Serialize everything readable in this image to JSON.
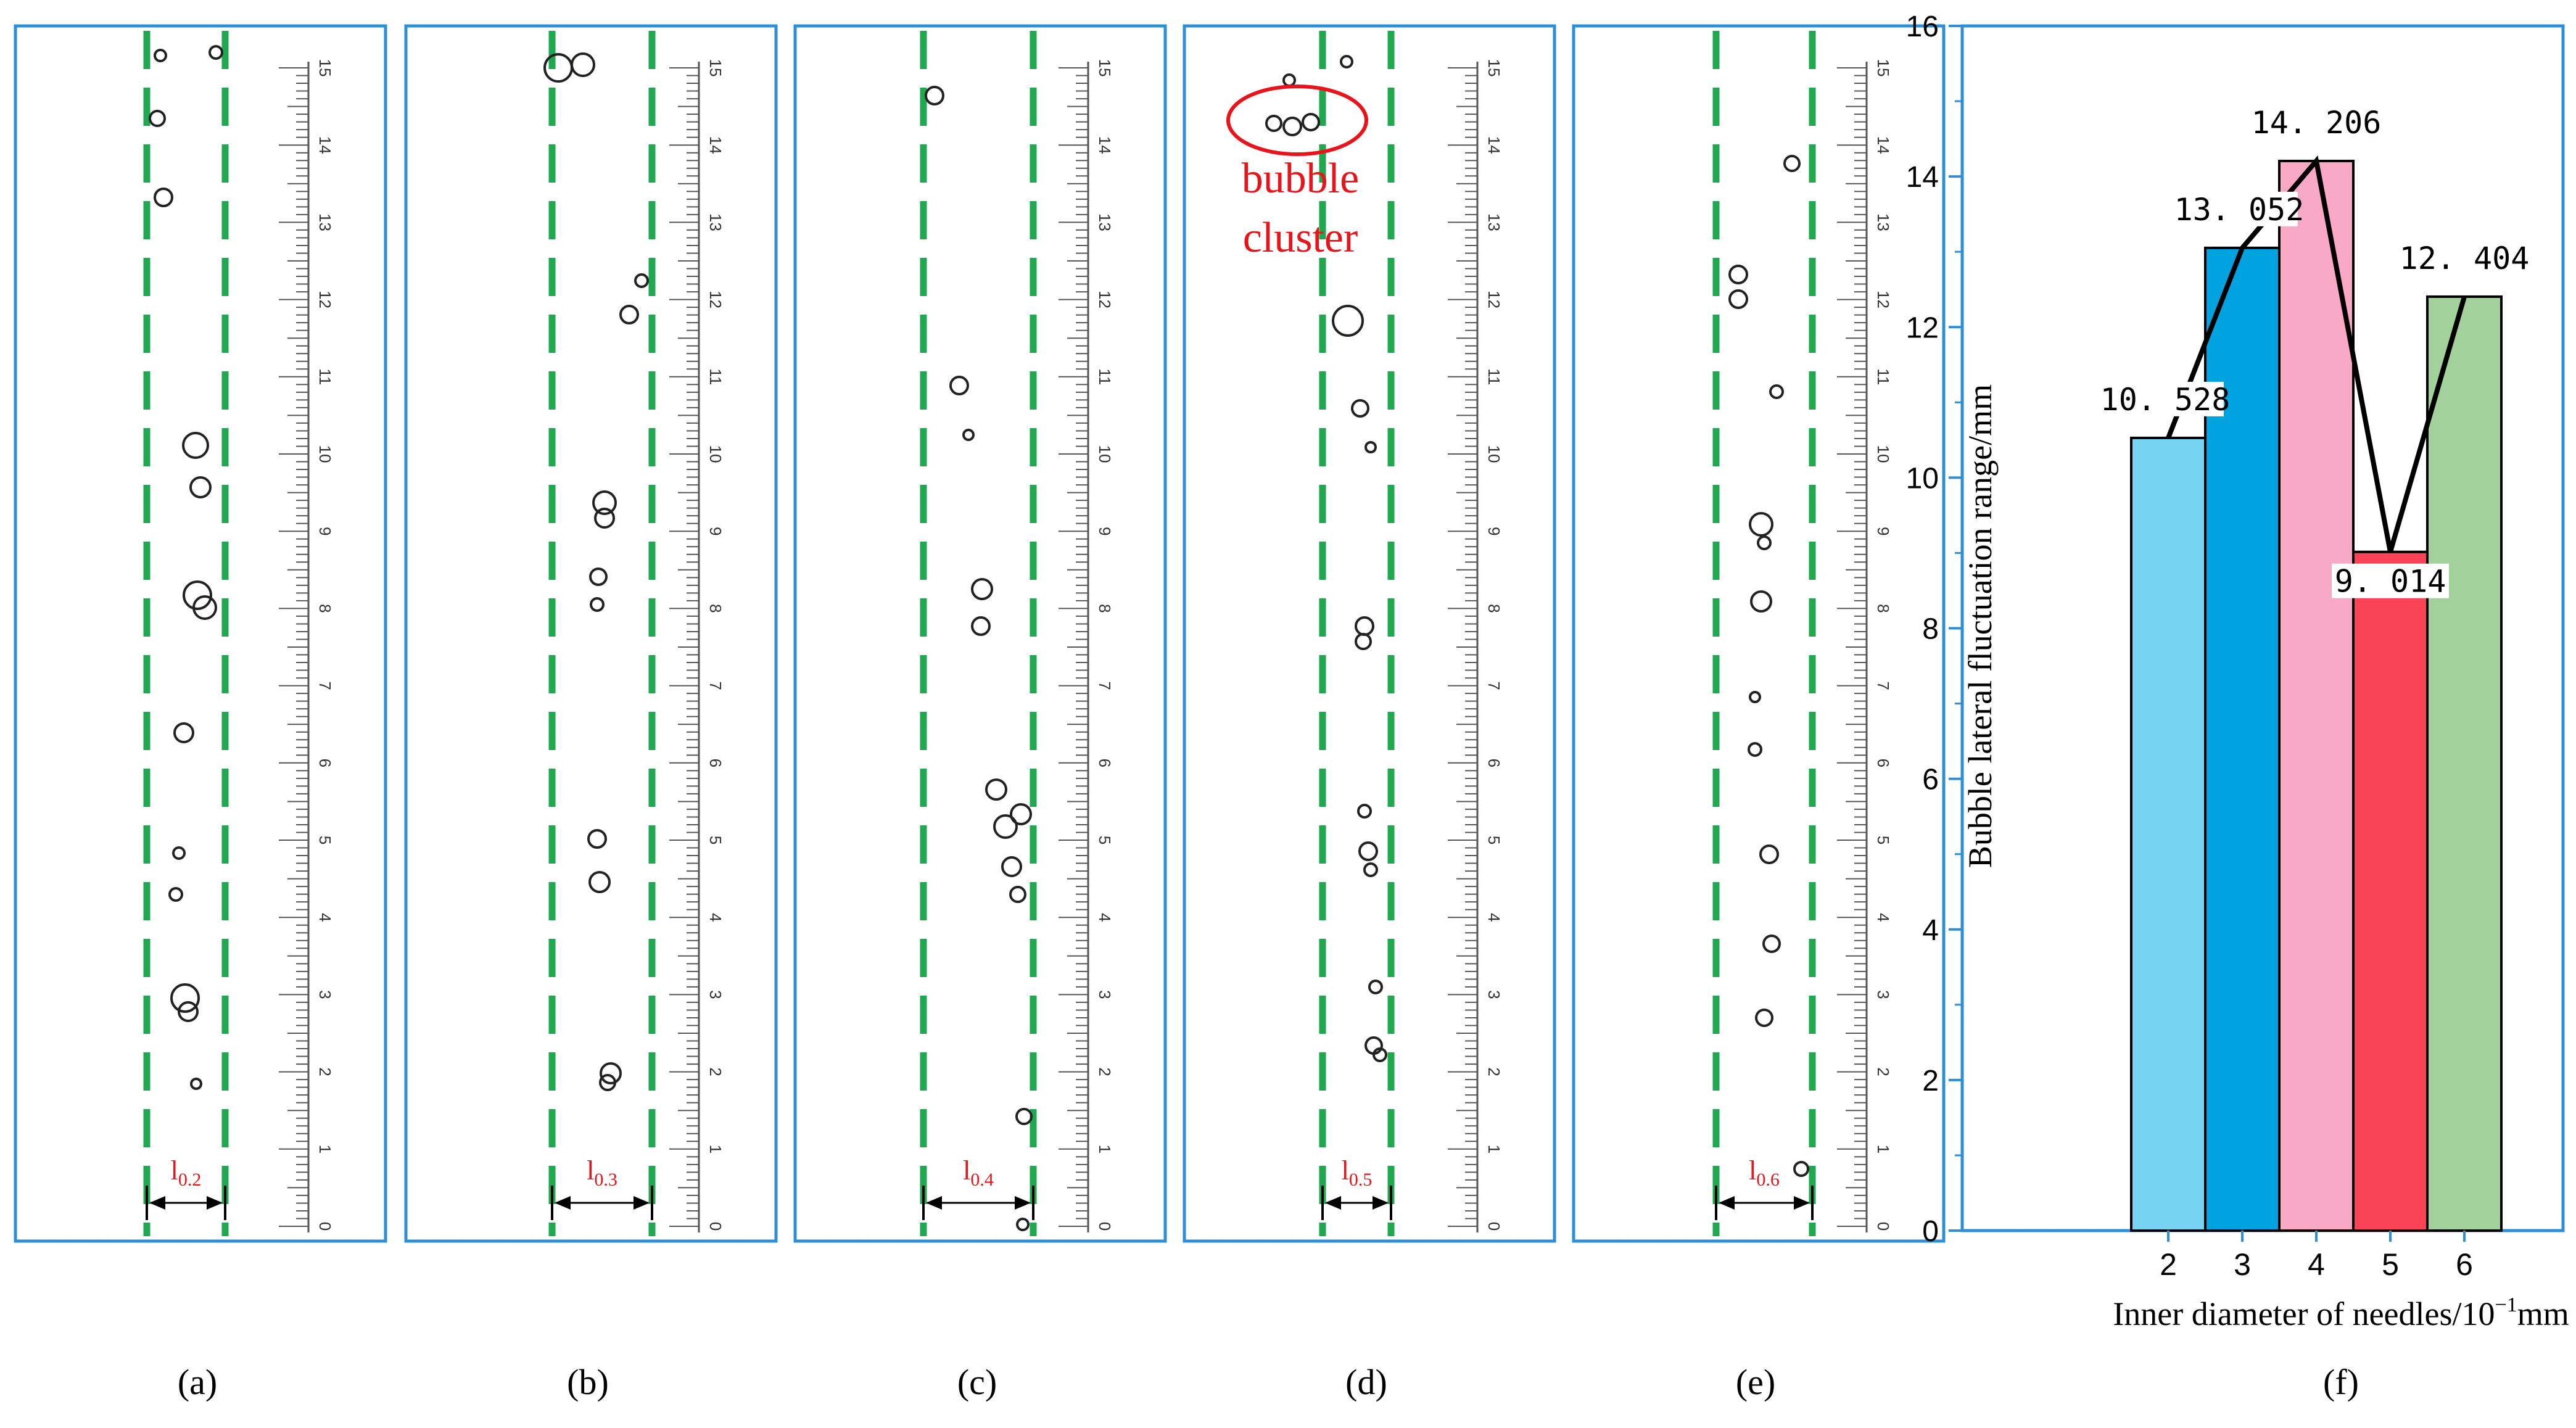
{
  "panels": [
    {
      "label": "(a)",
      "l_base": "l",
      "l_sub": "0.2"
    },
    {
      "label": "(b)",
      "l_base": "l",
      "l_sub": "0.3"
    },
    {
      "label": "(c)",
      "l_base": "l",
      "l_sub": "0.4"
    },
    {
      "label": "(d)",
      "l_base": "l",
      "l_sub": "0.5"
    },
    {
      "label": "(e)",
      "l_base": "l",
      "l_sub": "0.6"
    }
  ],
  "ruler_ticks": [
    "0",
    "1",
    "2",
    "3",
    "4",
    "5",
    "6",
    "7",
    "8",
    "9",
    "10",
    "11",
    "12",
    "13",
    "14",
    "15"
  ],
  "annotation": {
    "line1": "bubble",
    "line2": "cluster"
  },
  "colors": {
    "frame": "#2f8fd6",
    "guide": "#1fa84f",
    "annotation": "#e8141b",
    "bubble": "#222222",
    "bars": [
      "#76d3f1",
      "#00a2e0",
      "#f9a8c6",
      "#fb4358",
      "#a3d19b"
    ]
  },
  "chart_data": {
    "type": "bar",
    "categories": [
      "2",
      "3",
      "4",
      "5",
      "6"
    ],
    "values": [
      10.528,
      13.052,
      14.206,
      9.014,
      12.404
    ],
    "value_labels": [
      "10. 528",
      "13. 052",
      "14. 206",
      "9. 014",
      "12. 404"
    ],
    "ylabel": "Bubble lateral fluctuation range/mm",
    "xlabel_main": "Inner diameter of needles/10",
    "xlabel_sup": "−1",
    "xlabel_unit": "mm",
    "ylim": [
      0,
      16
    ],
    "yticks": [
      "0",
      "2",
      "4",
      "6",
      "8",
      "10",
      "12",
      "14",
      "16"
    ],
    "overlay": "line connecting bar tops",
    "grid": false,
    "legend": "none",
    "panel_label": "(f)"
  }
}
